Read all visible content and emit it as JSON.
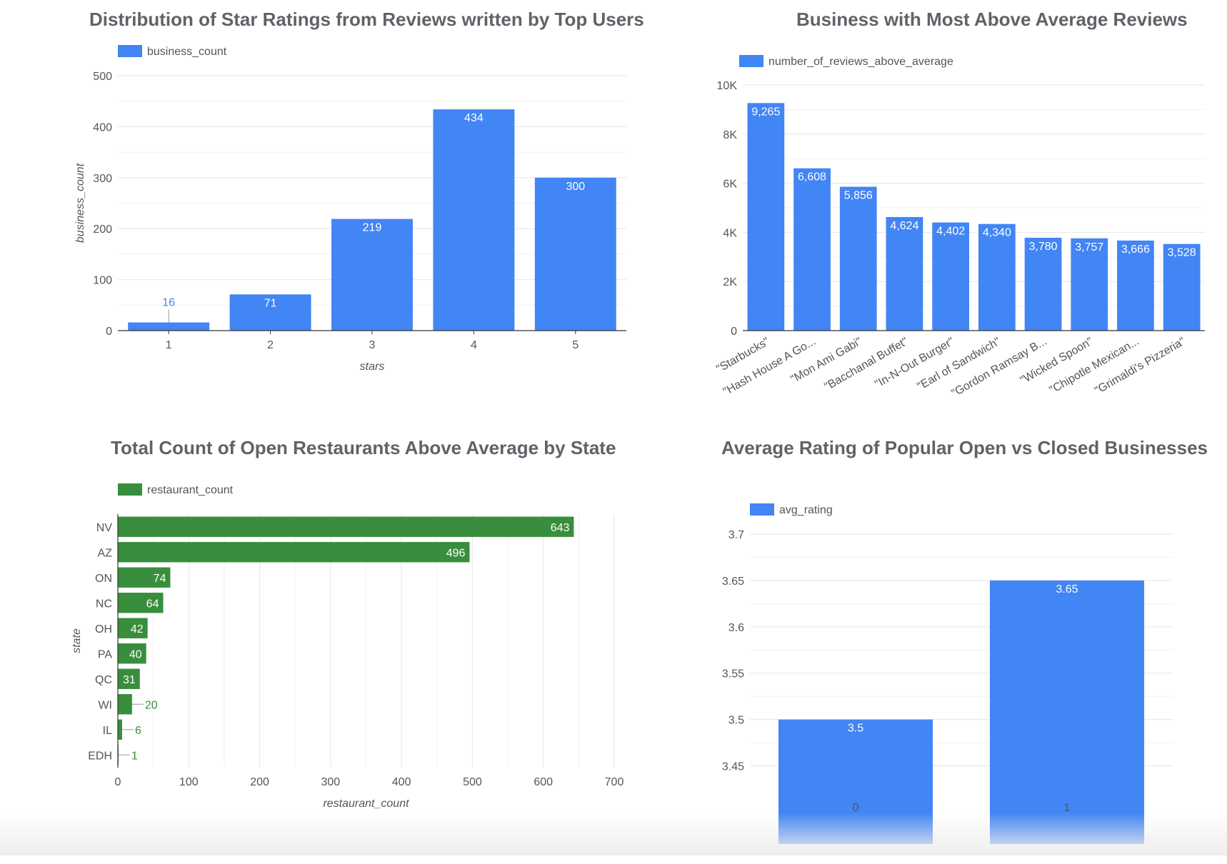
{
  "colors": {
    "blue": "#4285f4",
    "green": "#388e3c",
    "grid": "#e6e6e6",
    "axis": "#333333",
    "tick_text": "#555555",
    "title": "#5f6368",
    "green_label": "#388e3c",
    "blue_label": "#4285f4"
  },
  "chart_data": [
    {
      "type": "bar",
      "orientation": "vertical",
      "title": "Distribution of Star Ratings from Reviews written by Top Users",
      "legend": "business_count",
      "legend_position": "top-left",
      "xlabel": "stars",
      "ylabel": "business_count",
      "categories": [
        "1",
        "2",
        "3",
        "4",
        "5"
      ],
      "values": [
        16,
        71,
        219,
        434,
        300
      ],
      "value_labels": [
        "16",
        "71",
        "219",
        "434",
        "300"
      ],
      "ylim": [
        0,
        500
      ],
      "yticks": [
        0,
        100,
        200,
        300,
        400,
        500
      ],
      "ytick_labels": [
        "0",
        "100",
        "200",
        "300",
        "400",
        "500"
      ],
      "grid": true,
      "color": "#4285f4"
    },
    {
      "type": "bar",
      "orientation": "vertical",
      "title": "Business with Most Above Average Reviews",
      "legend": "number_of_reviews_above_average",
      "legend_position": "top-left",
      "xlabel": "",
      "ylabel": "",
      "categories": [
        "\"Starbucks\"",
        "\"Hash House A Go...",
        "\"Mon Ami Gabi\"",
        "\"Bacchanal Buffet\"",
        "\"In-N-Out Burger\"",
        "\"Earl of Sandwich\"",
        "\"Gordon Ramsay B...",
        "\"Wicked Spoon\"",
        "\"Chipotle Mexican...",
        "\"Grimaldi's Pizzeria\""
      ],
      "values": [
        9265,
        6608,
        5856,
        4624,
        4402,
        4340,
        3780,
        3757,
        3666,
        3528
      ],
      "value_labels": [
        "9,265",
        "6,608",
        "5,856",
        "4,624",
        "4,402",
        "4,340",
        "3,780",
        "3,757",
        "3,666",
        "3,528"
      ],
      "ylim": [
        0,
        10000
      ],
      "yticks": [
        0,
        2000,
        4000,
        6000,
        8000,
        10000
      ],
      "ytick_labels": [
        "0",
        "2K",
        "4K",
        "6K",
        "8K",
        "10K"
      ],
      "grid": true,
      "color": "#4285f4"
    },
    {
      "type": "bar",
      "orientation": "horizontal",
      "title": "Total Count of Open Restaurants Above Average by State",
      "legend": "restaurant_count",
      "legend_position": "top-left",
      "xlabel": "restaurant_count",
      "ylabel": "state",
      "categories": [
        "NV",
        "AZ",
        "ON",
        "NC",
        "OH",
        "PA",
        "QC",
        "WI",
        "IL",
        "EDH"
      ],
      "values": [
        643,
        496,
        74,
        64,
        42,
        40,
        31,
        20,
        6,
        1
      ],
      "value_labels": [
        "643",
        "496",
        "74",
        "64",
        "42",
        "40",
        "31",
        "20",
        "6",
        "1"
      ],
      "xlim": [
        0,
        700
      ],
      "xticks": [
        0,
        100,
        200,
        300,
        400,
        500,
        600,
        700
      ],
      "xtick_labels": [
        "0",
        "100",
        "200",
        "300",
        "400",
        "500",
        "600",
        "700"
      ],
      "grid": true,
      "color": "#388e3c"
    },
    {
      "type": "bar",
      "orientation": "vertical",
      "title": "Average Rating of Popular Open vs Closed Businesses",
      "legend": "avg_rating",
      "legend_position": "top-left",
      "xlabel": "",
      "ylabel": "",
      "categories": [
        "0",
        "1"
      ],
      "values": [
        3.5,
        3.65
      ],
      "value_labels": [
        "3.5",
        "3.65"
      ],
      "ylim": [
        3.425,
        3.7
      ],
      "yticks": [
        3.45,
        3.5,
        3.55,
        3.6,
        3.65,
        3.7
      ],
      "ytick_labels": [
        "3.45",
        "3.5",
        "3.55",
        "3.6",
        "3.65",
        "3.7"
      ],
      "grid": true,
      "color": "#4285f4"
    }
  ]
}
